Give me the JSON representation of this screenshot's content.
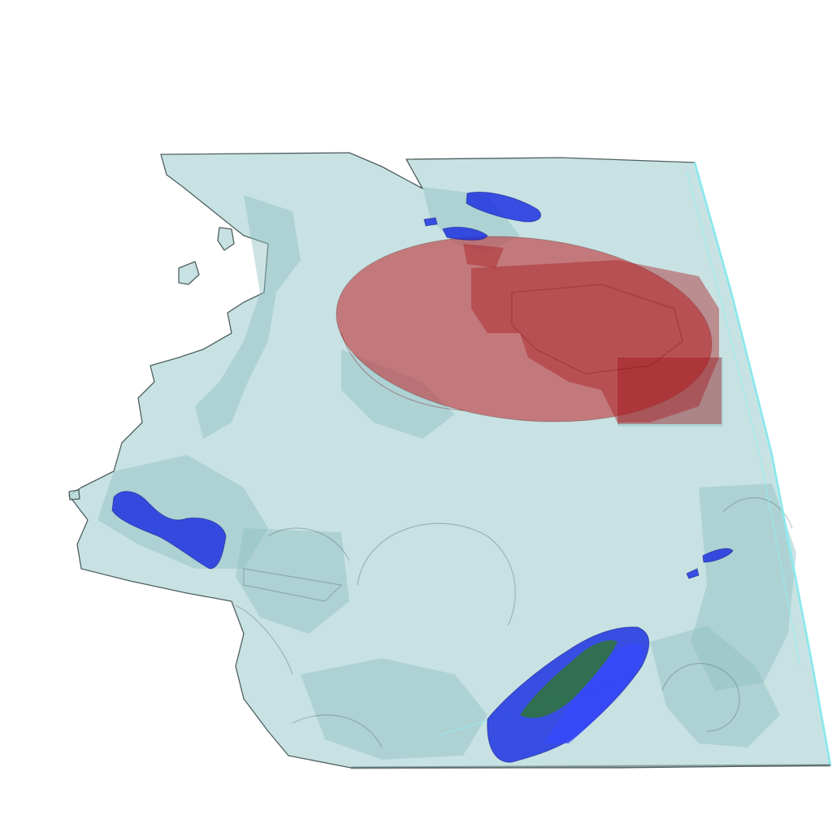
{
  "scene": {
    "background": "#ffffff",
    "colors": {
      "volume_fill": "#b9dadb",
      "volume_shade": "#8fbfc2",
      "outline": "#4f5f60",
      "edge_highlight": "#8ff0f4",
      "red_body": "#c0393b",
      "red_shade": "#a8181c",
      "blue_body": "#1f32e0",
      "green_body": "#2e7d14"
    },
    "objects": [
      "translucent-volume",
      "red-isosurface",
      "blue-isosurface",
      "green-isosurface"
    ]
  }
}
